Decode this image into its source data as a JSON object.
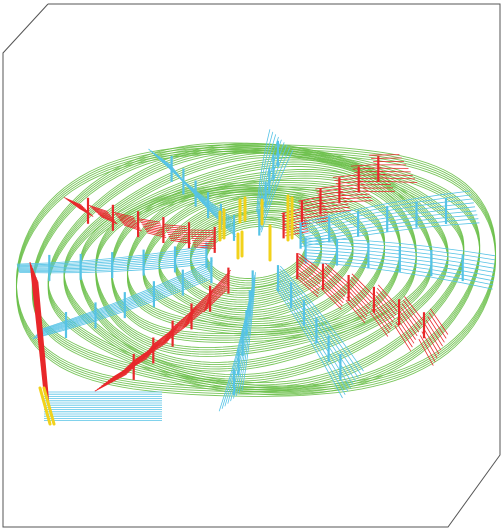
{
  "figure": {
    "kind": "3d-wire-rendering",
    "background": "#ffffff",
    "frame_color": "#555555",
    "colors": {
      "rings": "#6cc04a",
      "rungs": "#56c3e6",
      "crossings": "#e8282b",
      "highlights": "#f2d21b"
    },
    "ring_count": 13,
    "spoke_count": 12
  }
}
